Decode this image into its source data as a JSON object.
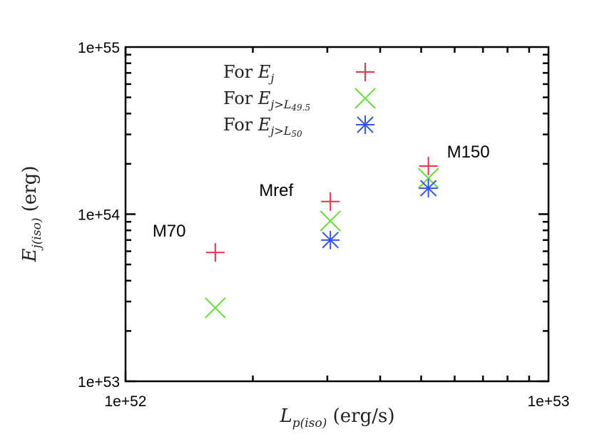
{
  "chart_data": {
    "type": "scatter",
    "xscale": "log",
    "yscale": "log",
    "xlim": [
      1e+52,
      1e+53
    ],
    "ylim": [
      1e+53,
      1e+55
    ],
    "xlabel": {
      "main": "L",
      "sub": "p(iso)",
      "unit": "(erg/s)"
    },
    "ylabel": {
      "main": "E",
      "sub": "j(iso)",
      "unit": "(erg)"
    },
    "xticks": [
      {
        "value": 1e+52,
        "label": "1e+52"
      },
      {
        "value": 1e+53,
        "label": "1e+53"
      }
    ],
    "yticks": [
      {
        "value": 1e+53,
        "label": "1e+53"
      },
      {
        "value": 1e+54,
        "label": "1e+54"
      },
      {
        "value": 1e+55,
        "label": "1e+55"
      }
    ],
    "legend_position": "top-center",
    "series": [
      {
        "name": "For E_j",
        "legend": {
          "prefix": "For ",
          "main": "E",
          "sub": "j"
        },
        "marker": "plus",
        "color": "#f0304a",
        "points": [
          {
            "x": 1.63e+52,
            "y": 5.9e+53
          },
          {
            "x": 3.05e+52,
            "y": 1.19e+54
          },
          {
            "x": 5.2e+52,
            "y": 1.94e+54
          }
        ]
      },
      {
        "name": "For E_j>L49.5",
        "legend": {
          "prefix": "For ",
          "main": "E",
          "sub": "j>L",
          "subsub": "49.5"
        },
        "marker": "cross",
        "color": "#66dd33",
        "points": [
          {
            "x": 1.63e+52,
            "y": 2.75e+53
          },
          {
            "x": 3.05e+52,
            "y": 9.1e+53
          },
          {
            "x": 5.2e+52,
            "y": 1.64e+54
          }
        ]
      },
      {
        "name": "For E_j>L50",
        "legend": {
          "prefix": "For ",
          "main": "E",
          "sub": "j>L",
          "subsub": "50"
        },
        "marker": "star",
        "color": "#3355ff",
        "points": [
          {
            "x": 3.05e+52,
            "y": 7e+53
          },
          {
            "x": 5.2e+52,
            "y": 1.43e+54
          }
        ]
      }
    ],
    "annotations": [
      {
        "text": "M70",
        "x": 1.63e+52,
        "y": 5.9e+53
      },
      {
        "text": "Mref",
        "x": 3.05e+52,
        "y": 1.19e+54
      },
      {
        "text": "M150",
        "x": 5.2e+52,
        "y": 1.94e+54
      }
    ]
  }
}
